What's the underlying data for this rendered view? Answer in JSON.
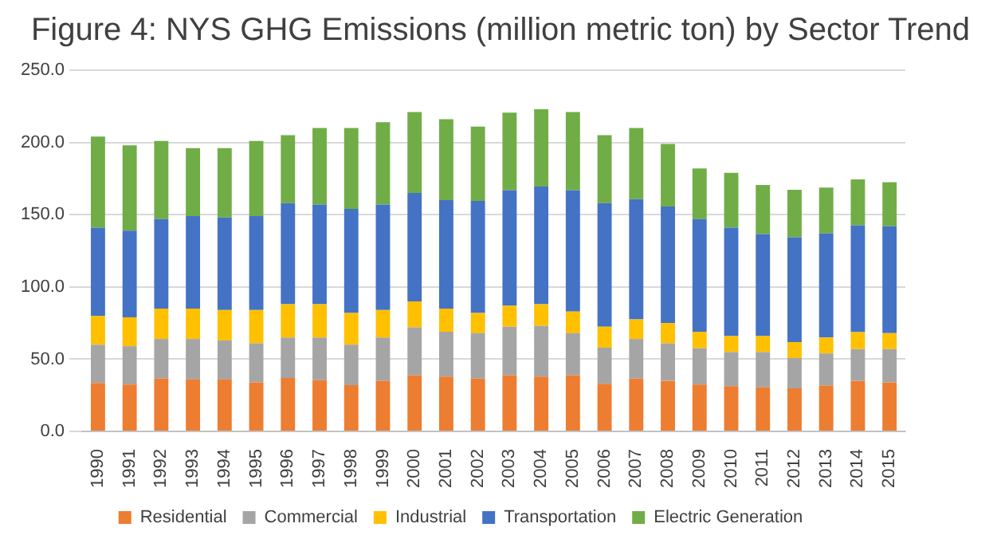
{
  "chart_data": {
    "type": "bar",
    "stacked": true,
    "title": "Figure 4: NYS GHG Emissions (million metric ton) by Sector Trend",
    "categories": [
      "1990",
      "1991",
      "1992",
      "1993",
      "1994",
      "1995",
      "1996",
      "1997",
      "1998",
      "1999",
      "2000",
      "2001",
      "2002",
      "2003",
      "2004",
      "2005",
      "2006",
      "2007",
      "2008",
      "2009",
      "2010",
      "2011",
      "2012",
      "2013",
      "2014",
      "2015"
    ],
    "series": [
      {
        "name": "Residential",
        "color": "#ed7d31",
        "values": [
          33.6,
          32.4,
          36.6,
          36,
          36,
          34,
          37,
          35.5,
          32,
          35,
          39,
          38,
          36.6,
          39,
          38,
          39,
          33,
          36.6,
          35,
          32.4,
          31.3,
          30.5,
          29.8,
          31.7,
          35,
          34
        ]
      },
      {
        "name": "Commercial",
        "color": "#a5a5a5",
        "values": [
          26.4,
          26.6,
          27.4,
          28,
          27,
          27,
          28,
          29.5,
          28,
          30,
          33,
          31,
          31.4,
          33.5,
          35,
          29,
          25,
          27.4,
          26,
          25.2,
          23.7,
          24.5,
          21,
          22.3,
          22,
          23
        ]
      },
      {
        "name": "Industrial",
        "color": "#ffc000",
        "values": [
          20,
          20,
          21,
          21,
          21,
          23,
          23,
          23,
          22,
          19,
          18,
          16,
          14,
          14.5,
          15,
          15,
          14.5,
          13.5,
          14,
          11.4,
          11,
          11,
          11,
          11,
          11.7,
          11
        ]
      },
      {
        "name": "Transportation",
        "color": "#4472c4",
        "values": [
          61,
          60,
          62,
          64,
          64,
          65,
          70,
          69,
          72,
          73,
          75,
          75,
          77.5,
          80,
          81.5,
          84,
          85.5,
          83.2,
          80.7,
          78,
          75,
          70.6,
          72.6,
          72,
          74,
          74
        ]
      },
      {
        "name": "Electric Generation",
        "color": "#70ad47",
        "values": [
          63,
          59,
          54,
          47,
          48,
          52,
          47,
          53,
          56,
          57,
          56,
          56,
          51.5,
          53.6,
          53.5,
          54,
          47,
          49.3,
          43.3,
          35,
          38,
          34,
          32.8,
          31.7,
          31.7,
          30.5
        ]
      }
    ],
    "ylim": [
      0,
      250
    ],
    "yticks": [
      {
        "value": 0,
        "label": "0.0"
      },
      {
        "value": 50,
        "label": "50.0"
      },
      {
        "value": 100,
        "label": "100.0"
      },
      {
        "value": 150,
        "label": "150.0"
      },
      {
        "value": 200,
        "label": "200.0"
      },
      {
        "value": 250,
        "label": "250.0"
      }
    ],
    "grid": "y",
    "legend": "bottom"
  }
}
